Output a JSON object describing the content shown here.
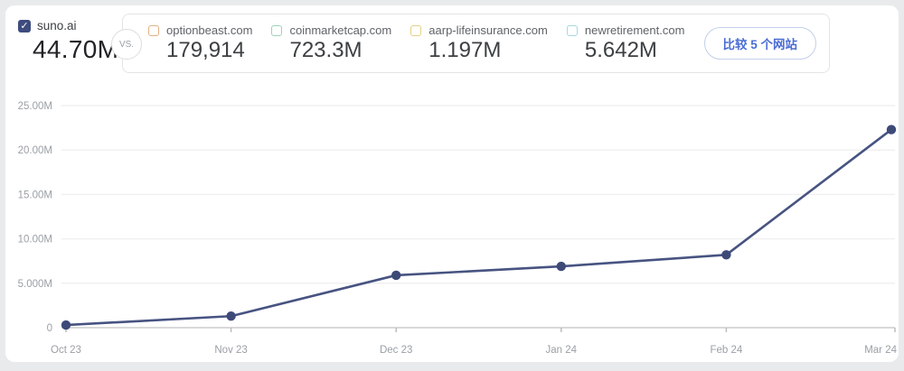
{
  "header": {
    "primary": {
      "domain": "suno.ai",
      "value": "44.70M",
      "checked": true,
      "checkbox_color": "#3e4c7e",
      "check_glyph": "✓"
    },
    "vs_label": "VS.",
    "competitors": [
      {
        "domain": "optionbeast.com",
        "value": "179,914",
        "checked": false,
        "color": "#e0b185"
      },
      {
        "domain": "coinmarketcap.com",
        "value": "723.3M",
        "checked": false,
        "color": "#9ed3b9"
      },
      {
        "domain": "aarp-lifeinsurance.com",
        "value": "1.197M",
        "checked": false,
        "color": "#e6d083"
      },
      {
        "domain": "newretirement.com",
        "value": "5.642M",
        "checked": false,
        "color": "#a5d8e0"
      }
    ],
    "compare_button_label": "比较 5 个网站"
  },
  "chart_data": {
    "type": "line",
    "title": "",
    "xlabel": "",
    "ylabel": "",
    "categories": [
      "Oct 23",
      "Nov 23",
      "Dec 23",
      "Jan 24",
      "Feb 24",
      "Mar 24"
    ],
    "series": [
      {
        "name": "suno.ai",
        "values_millions": [
          0.3,
          1.3,
          5.9,
          6.9,
          8.2,
          22.3
        ],
        "line_color": "#475381",
        "point_color": "#3d4a78"
      }
    ],
    "ylim_millions": [
      0,
      25
    ],
    "y_ticks": [
      {
        "value": 0,
        "label": "0"
      },
      {
        "value": 5,
        "label": "5.000M"
      },
      {
        "value": 10,
        "label": "10.00M"
      },
      {
        "value": 15,
        "label": "15.00M"
      },
      {
        "value": 20,
        "label": "20.00M"
      },
      {
        "value": 25,
        "label": "25.00M"
      }
    ],
    "grid": true,
    "legend": false,
    "colors": {
      "gridline": "#f0f0f2",
      "axis": "#d9d9d9",
      "tick": "#bdbdbd",
      "axis_label": "#9aa0a6"
    }
  }
}
